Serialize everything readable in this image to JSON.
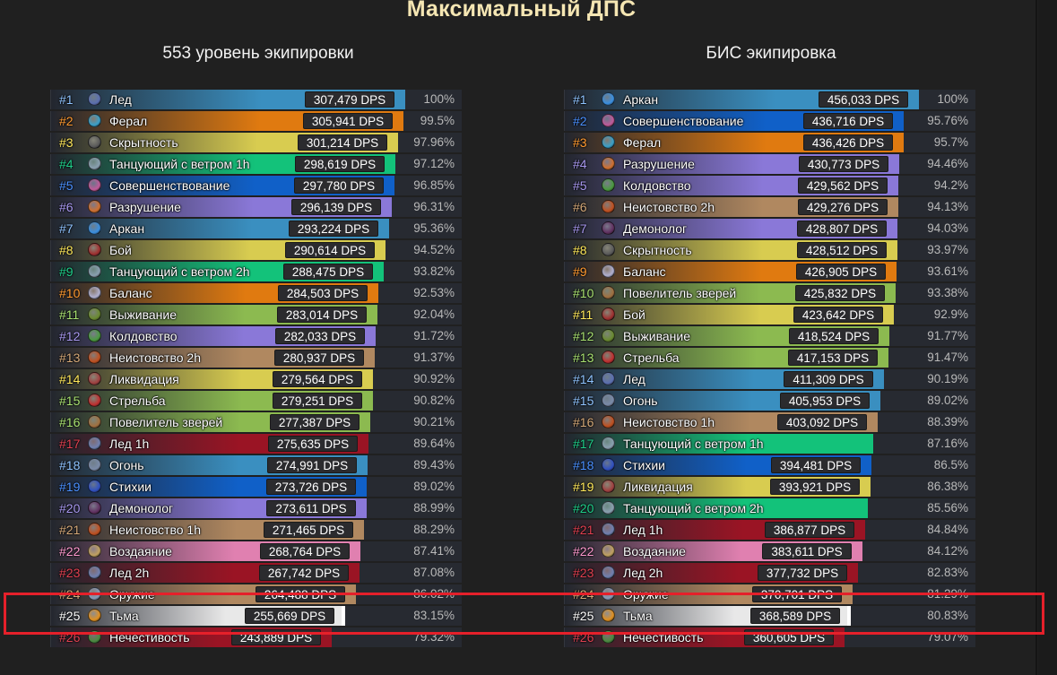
{
  "title": "Максимальный ДПС",
  "left": {
    "heading": "553 уровень экипировки",
    "rows": [
      {
        "rank": "#1",
        "name": "Лед",
        "dps": "307,479 DPS",
        "pct": "100%",
        "frac": 1.0,
        "color": "#3a8fc0",
        "rankColor": "#8fc3ff",
        "icon": "#5b6fb0"
      },
      {
        "rank": "#2",
        "name": "Ферал",
        "dps": "305,941 DPS",
        "pct": "99.5%",
        "frac": 0.995,
        "color": "#e07a10",
        "rankColor": "#ff9a30",
        "icon": "#3aa0c8"
      },
      {
        "rank": "#3",
        "name": "Скрытность",
        "dps": "301,214 DPS",
        "pct": "97.96%",
        "frac": 0.9796,
        "color": "#d8cc50",
        "rankColor": "#ffe85a",
        "icon": "#5a5a5a"
      },
      {
        "rank": "#4",
        "name": "Танцующий с ветром 1h",
        "dps": "298,619 DPS",
        "pct": "97.12%",
        "frac": 0.9712,
        "color": "#13c27a",
        "rankColor": "#1fcf8a",
        "icon": "#8aa0b0"
      },
      {
        "rank": "#5",
        "name": "Совершенствование",
        "dps": "297,780 DPS",
        "pct": "96.85%",
        "frac": 0.9685,
        "color": "#1060c8",
        "rankColor": "#4a90ff",
        "icon": "#c05a9a"
      },
      {
        "rank": "#6",
        "name": "Разрушение",
        "dps": "296,139 DPS",
        "pct": "96.31%",
        "frac": 0.9631,
        "color": "#8a78d8",
        "rankColor": "#a898f0",
        "icon": "#d07030"
      },
      {
        "rank": "#7",
        "name": "Аркан",
        "dps": "293,224 DPS",
        "pct": "95.36%",
        "frac": 0.9536,
        "color": "#3a8fc0",
        "rankColor": "#8fc3ff",
        "icon": "#3a8fe0"
      },
      {
        "rank": "#8",
        "name": "Бой",
        "dps": "290,614 DPS",
        "pct": "94.52%",
        "frac": 0.9452,
        "color": "#d8cc50",
        "rankColor": "#ffe85a",
        "icon": "#a03030"
      },
      {
        "rank": "#9",
        "name": "Танцующий с ветром 2h",
        "dps": "288,475 DPS",
        "pct": "93.82%",
        "frac": 0.9382,
        "color": "#13c27a",
        "rankColor": "#1fcf8a",
        "icon": "#8aa0b0"
      },
      {
        "rank": "#10",
        "name": "Баланс",
        "dps": "284,503 DPS",
        "pct": "92.53%",
        "frac": 0.9253,
        "color": "#e07a10",
        "rankColor": "#ff9a30",
        "icon": "#b0b0d0"
      },
      {
        "rank": "#11",
        "name": "Выживание",
        "dps": "283,014 DPS",
        "pct": "92.04%",
        "frac": 0.9204,
        "color": "#8cba50",
        "rankColor": "#a8e070",
        "icon": "#6a8a30"
      },
      {
        "rank": "#12",
        "name": "Колдовство",
        "dps": "282,033 DPS",
        "pct": "91.72%",
        "frac": 0.9172,
        "color": "#8a78d8",
        "rankColor": "#a898f0",
        "icon": "#4a9a40"
      },
      {
        "rank": "#13",
        "name": "Неистовство 2h",
        "dps": "280,937 DPS",
        "pct": "91.37%",
        "frac": 0.9137,
        "color": "#b08860",
        "rankColor": "#d4a878",
        "icon": "#c05020"
      },
      {
        "rank": "#14",
        "name": "Ликвидация",
        "dps": "279,564 DPS",
        "pct": "90.92%",
        "frac": 0.9092,
        "color": "#d8cc50",
        "rankColor": "#ffe85a",
        "icon": "#a04040"
      },
      {
        "rank": "#15",
        "name": "Стрельба",
        "dps": "279,251 DPS",
        "pct": "90.82%",
        "frac": 0.9082,
        "color": "#8cba50",
        "rankColor": "#a8e070",
        "icon": "#c03030"
      },
      {
        "rank": "#16",
        "name": "Повелитель зверей",
        "dps": "277,387 DPS",
        "pct": "90.21%",
        "frac": 0.9021,
        "color": "#8cba50",
        "rankColor": "#a8e070",
        "icon": "#a07040"
      },
      {
        "rank": "#17",
        "name": "Лед 1h",
        "dps": "275,635 DPS",
        "pct": "89.64%",
        "frac": 0.8964,
        "color": "#9a1424",
        "rankColor": "#e04050",
        "icon": "#7080b0"
      },
      {
        "rank": "#18",
        "name": "Огонь",
        "dps": "274,991 DPS",
        "pct": "89.43%",
        "frac": 0.8943,
        "color": "#3a8fc0",
        "rankColor": "#8fc3ff",
        "icon": "#7a8aa8"
      },
      {
        "rank": "#19",
        "name": "Стихии",
        "dps": "273,726 DPS",
        "pct": "89.02%",
        "frac": 0.8902,
        "color": "#1060c8",
        "rankColor": "#4a90ff",
        "icon": "#3050c0"
      },
      {
        "rank": "#20",
        "name": "Демонолог",
        "dps": "273,611 DPS",
        "pct": "88.99%",
        "frac": 0.8899,
        "color": "#8a78d8",
        "rankColor": "#a898f0",
        "icon": "#603060"
      },
      {
        "rank": "#21",
        "name": "Неистовство 1h",
        "dps": "271,465 DPS",
        "pct": "88.29%",
        "frac": 0.8829,
        "color": "#b08860",
        "rankColor": "#d4a878",
        "icon": "#c05020"
      },
      {
        "rank": "#22",
        "name": "Воздаяние",
        "dps": "268,764 DPS",
        "pct": "87.41%",
        "frac": 0.8741,
        "color": "#e080b0",
        "rankColor": "#ff9ad0",
        "icon": "#c0a060"
      },
      {
        "rank": "#23",
        "name": "Лед 2h",
        "dps": "267,742 DPS",
        "pct": "87.08%",
        "frac": 0.8708,
        "color": "#9a1424",
        "rankColor": "#e04050",
        "icon": "#7080b0"
      },
      {
        "rank": "#24",
        "name": "Оружие",
        "dps": "264,488 DPS",
        "pct": "86.02%",
        "frac": 0.8602,
        "color": "#b08860",
        "rankColor": "#d4a878",
        "icon": "#8a9ab8"
      },
      {
        "rank": "#25",
        "name": "Тьма",
        "dps": "255,669 DPS",
        "pct": "83.15%",
        "frac": 0.8315,
        "color": "#e8e8e8",
        "rankColor": "#ffffff",
        "icon": "#e09020"
      },
      {
        "rank": "#26",
        "name": "Нечестивость",
        "dps": "243,889 DPS",
        "pct": "79.32%",
        "frac": 0.7932,
        "color": "#9a1424",
        "rankColor": "#e04050",
        "icon": "#4a8a40"
      }
    ]
  },
  "right": {
    "heading": "БИС экипировка",
    "rows": [
      {
        "rank": "#1",
        "name": "Аркан",
        "dps": "456,033 DPS",
        "pct": "100%",
        "frac": 1.0,
        "color": "#3a8fc0",
        "rankColor": "#8fc3ff",
        "icon": "#3a8fe0"
      },
      {
        "rank": "#2",
        "name": "Совершенствование",
        "dps": "436,716 DPS",
        "pct": "95.76%",
        "frac": 0.9576,
        "color": "#1060c8",
        "rankColor": "#4a90ff",
        "icon": "#c05a9a"
      },
      {
        "rank": "#3",
        "name": "Ферал",
        "dps": "436,426 DPS",
        "pct": "95.7%",
        "frac": 0.957,
        "color": "#e07a10",
        "rankColor": "#ff9a30",
        "icon": "#3aa0c8"
      },
      {
        "rank": "#4",
        "name": "Разрушение",
        "dps": "430,773 DPS",
        "pct": "94.46%",
        "frac": 0.9446,
        "color": "#8a78d8",
        "rankColor": "#a898f0",
        "icon": "#d07030"
      },
      {
        "rank": "#5",
        "name": "Колдовство",
        "dps": "429,562 DPS",
        "pct": "94.2%",
        "frac": 0.942,
        "color": "#8a78d8",
        "rankColor": "#a898f0",
        "icon": "#4a9a40"
      },
      {
        "rank": "#6",
        "name": "Неистовство 2h",
        "dps": "429,276 DPS",
        "pct": "94.13%",
        "frac": 0.9413,
        "color": "#b08860",
        "rankColor": "#d4a878",
        "icon": "#c05020"
      },
      {
        "rank": "#7",
        "name": "Демонолог",
        "dps": "428,807 DPS",
        "pct": "94.03%",
        "frac": 0.9403,
        "color": "#8a78d8",
        "rankColor": "#a898f0",
        "icon": "#603060"
      },
      {
        "rank": "#8",
        "name": "Скрытность",
        "dps": "428,512 DPS",
        "pct": "93.97%",
        "frac": 0.9397,
        "color": "#d8cc50",
        "rankColor": "#ffe85a",
        "icon": "#5a5a5a"
      },
      {
        "rank": "#9",
        "name": "Баланс",
        "dps": "426,905 DPS",
        "pct": "93.61%",
        "frac": 0.9361,
        "color": "#e07a10",
        "rankColor": "#ff9a30",
        "icon": "#b0b0d0"
      },
      {
        "rank": "#10",
        "name": "Повелитель зверей",
        "dps": "425,832 DPS",
        "pct": "93.38%",
        "frac": 0.9338,
        "color": "#8cba50",
        "rankColor": "#a8e070",
        "icon": "#a07040"
      },
      {
        "rank": "#11",
        "name": "Бой",
        "dps": "423,642 DPS",
        "pct": "92.9%",
        "frac": 0.929,
        "color": "#d8cc50",
        "rankColor": "#ffe85a",
        "icon": "#a03030"
      },
      {
        "rank": "#12",
        "name": "Выживание",
        "dps": "418,524 DPS",
        "pct": "91.77%",
        "frac": 0.9177,
        "color": "#8cba50",
        "rankColor": "#a8e070",
        "icon": "#6a8a30"
      },
      {
        "rank": "#13",
        "name": "Стрельба",
        "dps": "417,153 DPS",
        "pct": "91.47%",
        "frac": 0.9147,
        "color": "#8cba50",
        "rankColor": "#a8e070",
        "icon": "#c03030"
      },
      {
        "rank": "#14",
        "name": "Лед",
        "dps": "411,309 DPS",
        "pct": "90.19%",
        "frac": 0.9019,
        "color": "#3a8fc0",
        "rankColor": "#8fc3ff",
        "icon": "#5b6fb0"
      },
      {
        "rank": "#15",
        "name": "Огонь",
        "dps": "405,953 DPS",
        "pct": "89.02%",
        "frac": 0.8902,
        "color": "#3a8fc0",
        "rankColor": "#8fc3ff",
        "icon": "#7a8aa8"
      },
      {
        "rank": "#16",
        "name": "Неистовство 1h",
        "dps": "403,092 DPS",
        "pct": "88.39%",
        "frac": 0.8839,
        "color": "#b08860",
        "rankColor": "#d4a878",
        "icon": "#c05020"
      },
      {
        "rank": "#17",
        "name": "Танцующий с ветром 1h",
        "dps": "",
        "pct": "87.16%",
        "frac": 0.8716,
        "color": "#13c27a",
        "rankColor": "#1fcf8a",
        "icon": "#8aa0b0"
      },
      {
        "rank": "#18",
        "name": "Стихии",
        "dps": "394,481 DPS",
        "pct": "86.5%",
        "frac": 0.865,
        "color": "#1060c8",
        "rankColor": "#4a90ff",
        "icon": "#3050c0"
      },
      {
        "rank": "#19",
        "name": "Ликвидация",
        "dps": "393,921 DPS",
        "pct": "86.38%",
        "frac": 0.8638,
        "color": "#d8cc50",
        "rankColor": "#ffe85a",
        "icon": "#a04040"
      },
      {
        "rank": "#20",
        "name": "Танцующий с ветром 2h",
        "dps": "",
        "pct": "85.56%",
        "frac": 0.8556,
        "color": "#13c27a",
        "rankColor": "#1fcf8a",
        "icon": "#8aa0b0"
      },
      {
        "rank": "#21",
        "name": "Лед 1h",
        "dps": "386,877 DPS",
        "pct": "84.84%",
        "frac": 0.8484,
        "color": "#9a1424",
        "rankColor": "#e04050",
        "icon": "#7080b0"
      },
      {
        "rank": "#22",
        "name": "Воздаяние",
        "dps": "383,611 DPS",
        "pct": "84.12%",
        "frac": 0.8412,
        "color": "#e080b0",
        "rankColor": "#ff9ad0",
        "icon": "#c0a060"
      },
      {
        "rank": "#23",
        "name": "Лед 2h",
        "dps": "377,732 DPS",
        "pct": "82.83%",
        "frac": 0.8283,
        "color": "#9a1424",
        "rankColor": "#e04050",
        "icon": "#7080b0"
      },
      {
        "rank": "#24",
        "name": "Оружие",
        "dps": "370,701 DPS",
        "pct": "81.29%",
        "frac": 0.8129,
        "color": "#b08860",
        "rankColor": "#d4a878",
        "icon": "#8a9ab8"
      },
      {
        "rank": "#25",
        "name": "Тьма",
        "dps": "368,589 DPS",
        "pct": "80.83%",
        "frac": 0.8083,
        "color": "#e8e8e8",
        "rankColor": "#ffffff",
        "icon": "#e09020"
      },
      {
        "rank": "#26",
        "name": "Нечестивость",
        "dps": "360,605 DPS",
        "pct": "79.07%",
        "frac": 0.7907,
        "color": "#9a1424",
        "rankColor": "#e04050",
        "icon": "#4a8a40"
      }
    ]
  }
}
